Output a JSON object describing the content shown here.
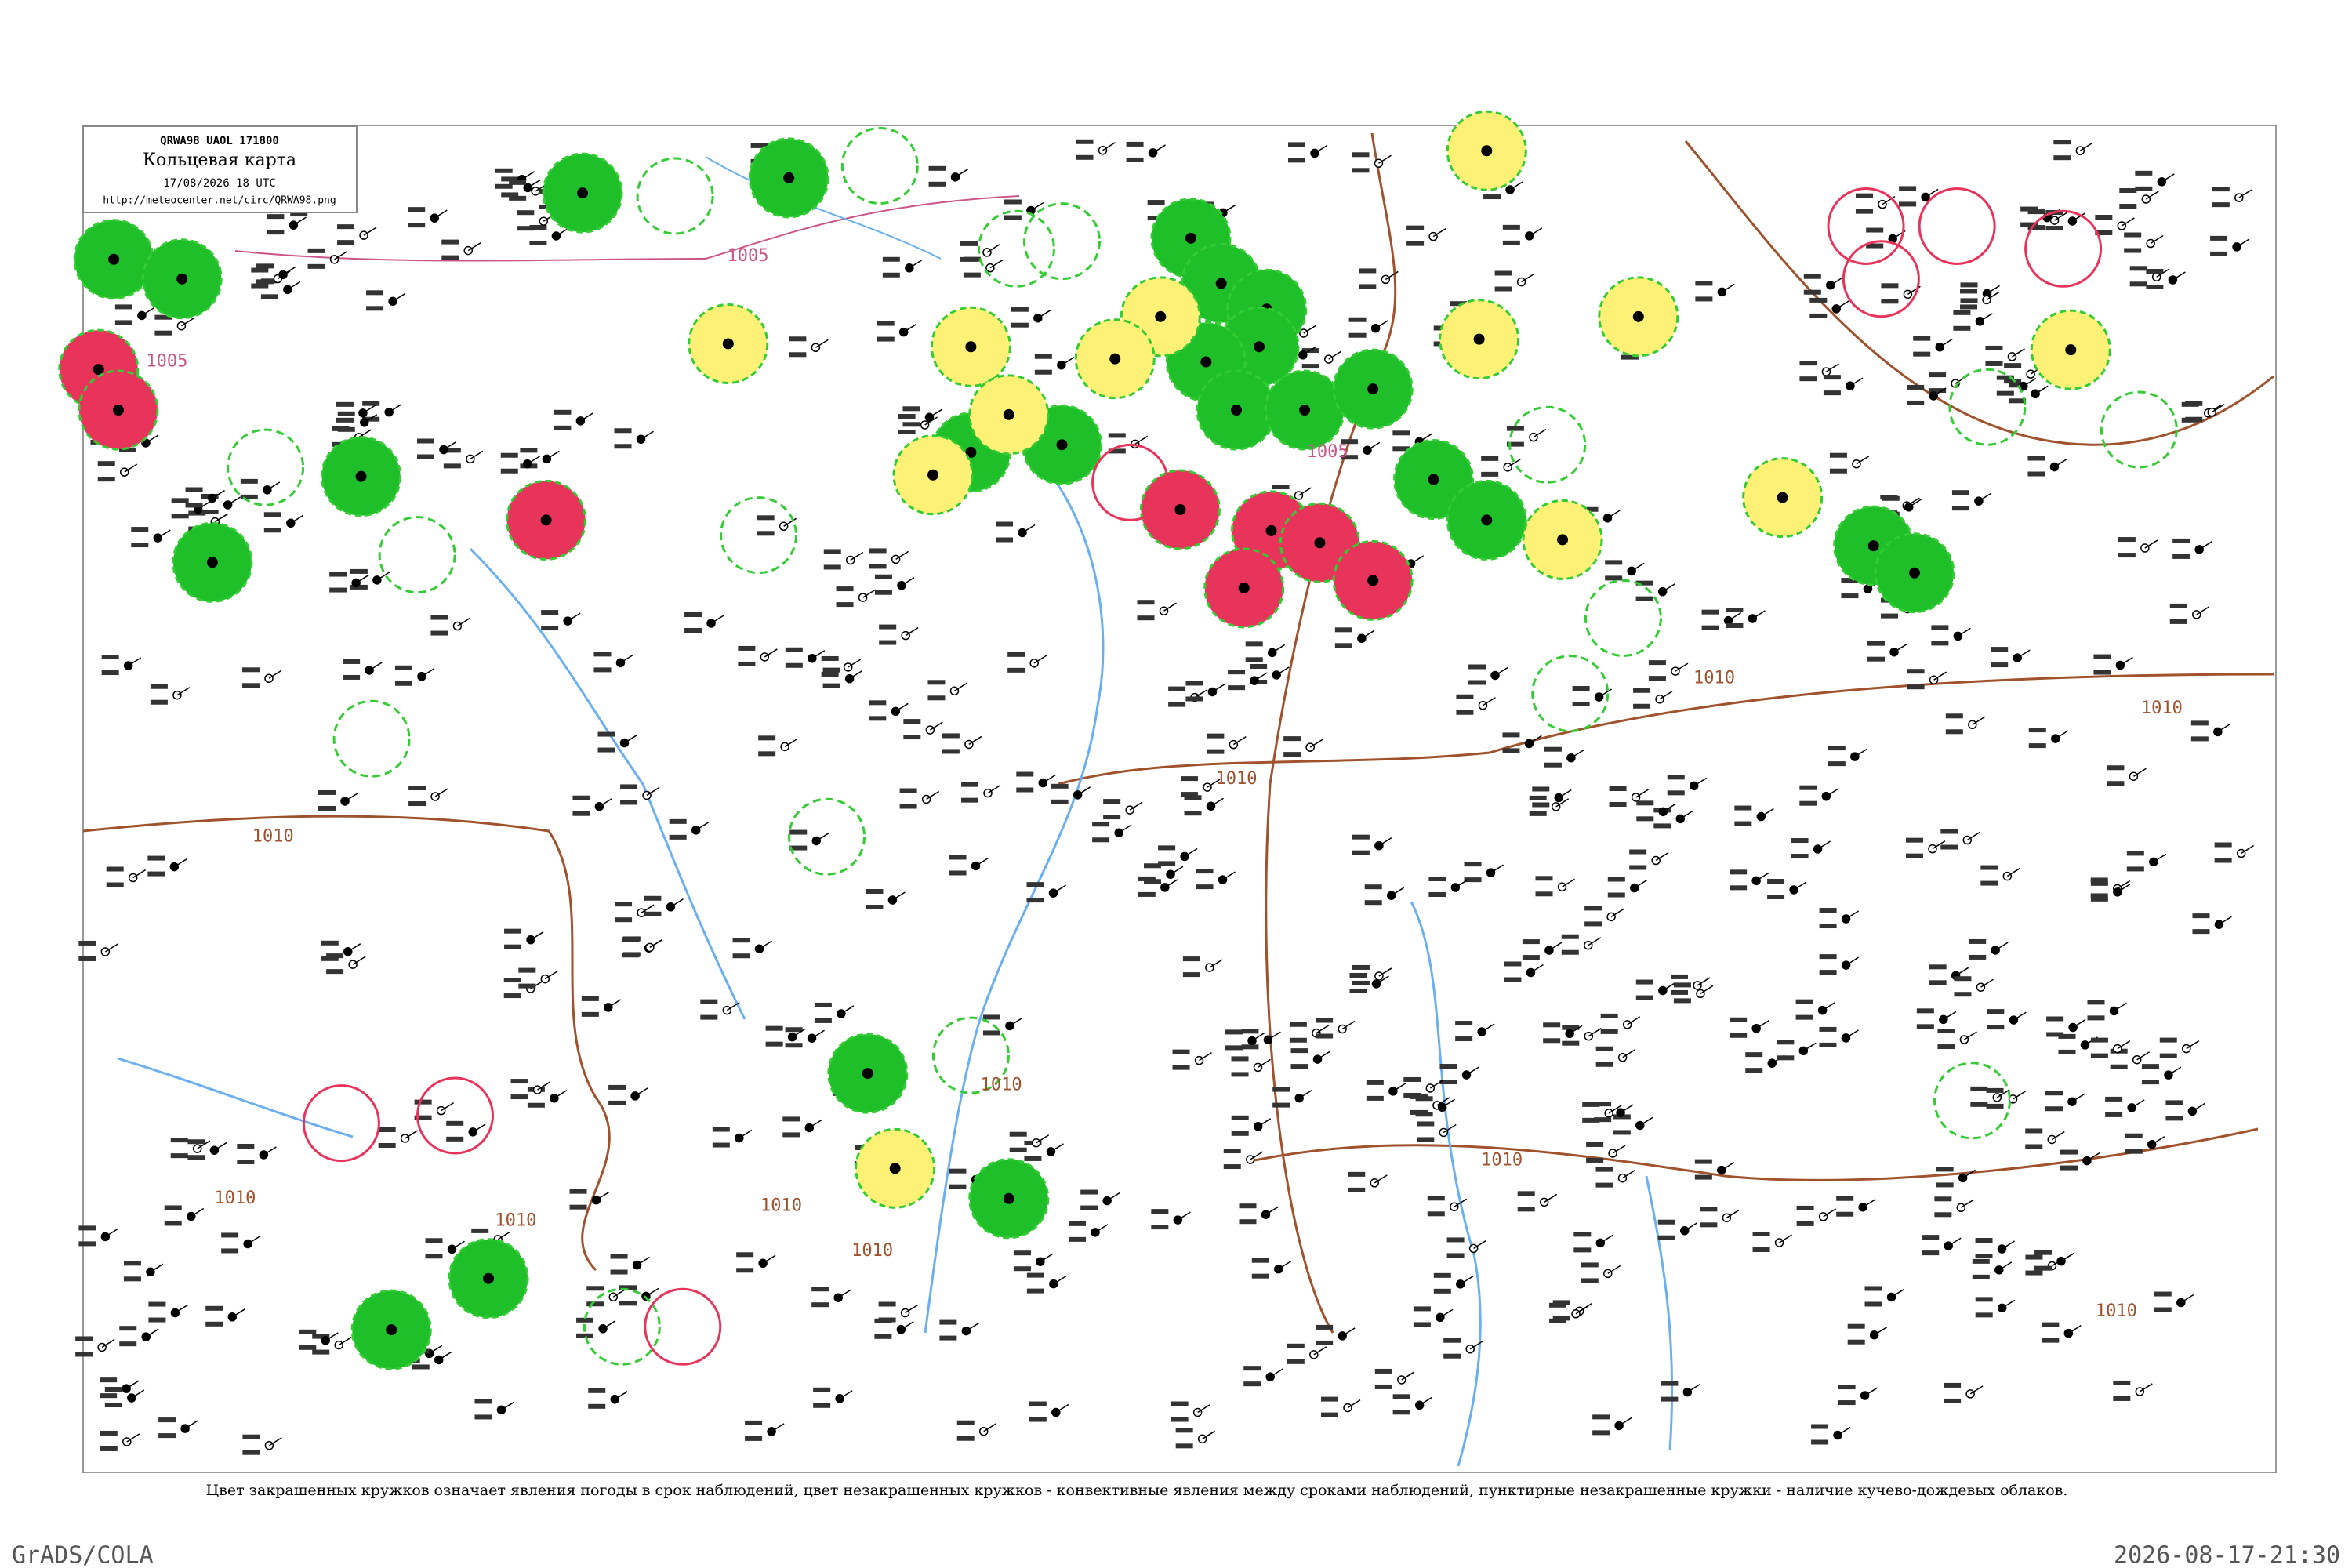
{
  "header": {
    "code": "QRWA98 UAOL 171800",
    "title": "Кольцевая карта",
    "datetime": "17/08/2026 18 UTC",
    "url": "http://meteocenter.net/circ/QRWA98.png"
  },
  "isobars": [
    "1005",
    "1005",
    "1005",
    "1010",
    "1010",
    "1010",
    "1010",
    "1010",
    "1010",
    "1010",
    "1010",
    "1010",
    "1010",
    "1010"
  ],
  "caption": "Цвет закрашенных кружков означает явления погоды в срок наблюдений, цвет незакрашенных кружков - конвективные явления между сроками наблюдений, пунктирные незакрашенные кружки - наличие кучево-дождевых облаков.",
  "footer": {
    "left": "GrADS/COLA",
    "right": "2026-08-17-21:30"
  }
}
